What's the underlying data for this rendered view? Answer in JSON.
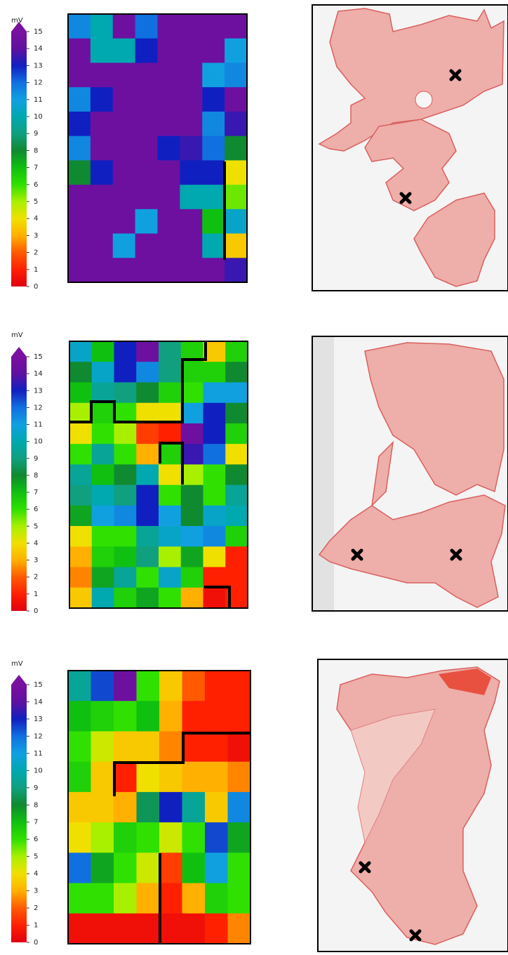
{
  "chart_data": [
    {
      "type": "heatmap",
      "colorbar_label": "mV",
      "clim": [
        0,
        15
      ],
      "cticks": [
        0,
        1,
        2,
        3,
        4,
        5,
        6,
        7,
        8,
        9,
        10,
        11,
        12,
        13,
        14,
        15
      ],
      "colorscale": [
        {
          "value": 0,
          "color": "#e00010"
        },
        {
          "value": 1,
          "color": "#ff2000"
        },
        {
          "value": 2,
          "color": "#ff5a00"
        },
        {
          "value": 3,
          "color": "#ffb000"
        },
        {
          "value": 4,
          "color": "#f0e000"
        },
        {
          "value": 5,
          "color": "#a8f000"
        },
        {
          "value": 6,
          "color": "#30e000"
        },
        {
          "value": 7,
          "color": "#10c010"
        },
        {
          "value": 8,
          "color": "#108a30"
        },
        {
          "value": 9,
          "color": "#10a080"
        },
        {
          "value": 10,
          "color": "#00a8b0"
        },
        {
          "value": 11,
          "color": "#10a0e0"
        },
        {
          "value": 12,
          "color": "#1070e0"
        },
        {
          "value": 13,
          "color": "#1020c0"
        },
        {
          "value": 14,
          "color": "#6010a0"
        },
        {
          "value": 15,
          "color": "#7a10a0"
        }
      ],
      "values": [
        [
          11.5,
          10,
          14.5,
          12,
          14.5,
          14.5,
          14.5,
          14.5
        ],
        [
          14.5,
          10,
          10,
          13,
          14.5,
          14.5,
          14.5,
          11
        ],
        [
          14.5,
          14.5,
          14.5,
          14.5,
          14.5,
          14.5,
          11,
          11.5
        ],
        [
          11.5,
          13,
          14.5,
          14.5,
          14.5,
          14.5,
          13,
          14.5
        ],
        [
          13,
          14.5,
          14.5,
          14.5,
          14.5,
          14.5,
          11.5,
          13.5
        ],
        [
          11.5,
          14.5,
          14.5,
          14.5,
          13,
          13.5,
          12,
          8
        ],
        [
          8,
          13,
          14.5,
          14.5,
          14.5,
          13,
          13,
          4
        ],
        [
          14.5,
          14.5,
          14.5,
          14.5,
          14.5,
          10,
          10,
          5.5
        ],
        [
          14.5,
          14.5,
          14.5,
          11,
          14.5,
          14.5,
          7,
          10.5
        ],
        [
          14.5,
          14.5,
          11,
          14.5,
          14.5,
          14.5,
          10,
          3.5
        ],
        [
          14.5,
          14.5,
          14.5,
          14.5,
          14.5,
          14.5,
          14.5,
          13.5
        ]
      ]
    },
    {
      "type": "heatmap",
      "colorbar_label": "mV",
      "clim": [
        0,
        15
      ],
      "cticks": [
        0,
        1,
        2,
        3,
        4,
        5,
        6,
        7,
        8,
        9,
        10,
        11,
        12,
        13,
        14,
        15
      ],
      "colorscale": [
        {
          "value": 0,
          "color": "#e00010"
        },
        {
          "value": 1,
          "color": "#ff2000"
        },
        {
          "value": 2,
          "color": "#ff5a00"
        },
        {
          "value": 3,
          "color": "#ffb000"
        },
        {
          "value": 4,
          "color": "#f0e000"
        },
        {
          "value": 5,
          "color": "#a8f000"
        },
        {
          "value": 6,
          "color": "#30e000"
        },
        {
          "value": 7,
          "color": "#10c010"
        },
        {
          "value": 8,
          "color": "#108a30"
        },
        {
          "value": 9,
          "color": "#10a080"
        },
        {
          "value": 10,
          "color": "#00a8b0"
        },
        {
          "value": 11,
          "color": "#10a0e0"
        },
        {
          "value": 12,
          "color": "#1070e0"
        },
        {
          "value": 13,
          "color": "#1020c0"
        },
        {
          "value": 14,
          "color": "#6010a0"
        },
        {
          "value": 15,
          "color": "#7a10a0"
        }
      ],
      "values": [
        [
          10.5,
          7,
          13,
          14.5,
          9,
          6.5,
          3.5,
          6.5
        ],
        [
          8,
          10.5,
          13,
          11.5,
          9,
          6.5,
          6.5,
          8
        ],
        [
          7,
          9.5,
          9,
          8,
          6.5,
          6,
          11,
          11
        ],
        [
          5,
          6.5,
          6,
          4,
          4,
          11,
          13,
          8
        ],
        [
          4,
          6,
          5,
          1.5,
          1,
          14.5,
          13,
          6.5
        ],
        [
          6,
          9.5,
          6,
          3,
          6.5,
          13.5,
          12,
          4
        ],
        [
          9.5,
          7,
          8,
          10,
          4,
          5,
          6,
          8
        ],
        [
          9,
          10,
          9,
          13,
          6,
          8,
          6,
          9.5
        ],
        [
          7.5,
          11,
          11.5,
          13,
          11,
          8,
          10.5,
          10
        ],
        [
          4,
          6,
          6,
          9.5,
          10.5,
          11,
          11.5,
          6.5
        ],
        [
          3,
          6.5,
          7,
          9,
          5,
          7.5,
          4,
          1
        ],
        [
          2.5,
          7.5,
          9.5,
          6,
          10.5,
          6.5,
          1,
          1
        ],
        [
          3.5,
          10,
          6.5,
          7.5,
          6,
          3,
          0.5,
          1
        ]
      ]
    },
    {
      "type": "heatmap",
      "colorbar_label": "mV",
      "clim": [
        0,
        15
      ],
      "cticks": [
        0,
        1,
        2,
        3,
        4,
        5,
        6,
        7,
        8,
        9,
        10,
        11,
        12,
        13,
        14,
        15
      ],
      "colorscale": [
        {
          "value": 0,
          "color": "#e00010"
        },
        {
          "value": 1,
          "color": "#ff2000"
        },
        {
          "value": 2,
          "color": "#ff5a00"
        },
        {
          "value": 3,
          "color": "#ffb000"
        },
        {
          "value": 4,
          "color": "#f0e000"
        },
        {
          "value": 5,
          "color": "#a8f000"
        },
        {
          "value": 6,
          "color": "#30e000"
        },
        {
          "value": 7,
          "color": "#10c010"
        },
        {
          "value": 8,
          "color": "#108a30"
        },
        {
          "value": 9,
          "color": "#10a080"
        },
        {
          "value": 10,
          "color": "#00a8b0"
        },
        {
          "value": 11,
          "color": "#10a0e0"
        },
        {
          "value": 12,
          "color": "#1070e0"
        },
        {
          "value": 13,
          "color": "#1020c0"
        },
        {
          "value": 14,
          "color": "#6010a0"
        },
        {
          "value": 15,
          "color": "#7a10a0"
        }
      ],
      "values": [
        [
          9.5,
          12.5,
          14.5,
          6,
          3.5,
          2,
          1,
          1
        ],
        [
          7,
          6.5,
          6,
          7,
          3,
          1,
          1,
          1
        ],
        [
          6,
          4.5,
          3.5,
          3.5,
          2.5,
          1,
          1,
          0.5
        ],
        [
          6.5,
          3.5,
          1,
          4,
          3.5,
          3,
          3,
          2.5
        ],
        [
          3.5,
          3.5,
          3,
          8.5,
          13,
          9.5,
          3.5,
          11.5
        ],
        [
          4,
          5,
          6.5,
          6,
          4.5,
          6,
          12.5,
          7.5
        ],
        [
          12,
          7.5,
          6,
          4.5,
          1.5,
          7,
          11,
          6
        ],
        [
          6,
          6,
          5,
          3,
          1,
          3,
          6.5,
          6
        ],
        [
          0.5,
          0.5,
          0.5,
          0.5,
          0.5,
          0.5,
          1,
          2.5
        ]
      ]
    }
  ]
}
